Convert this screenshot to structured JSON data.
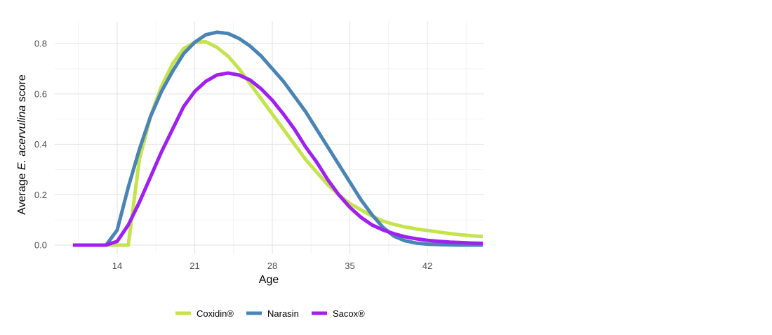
{
  "chart_data": {
    "type": "line",
    "title": "",
    "xlabel": "Age",
    "ylabel_prefix": "Average ",
    "ylabel_italic": "E. acervulina",
    "ylabel_suffix": " score",
    "xlim": [
      8.5,
      48
    ],
    "ylim": [
      -0.035,
      0.86
    ],
    "xticks": [
      14,
      21,
      28,
      35,
      42
    ],
    "yticks": [
      0.0,
      0.2,
      0.4,
      0.6,
      0.8
    ],
    "ytick_labels": [
      "0.0",
      "0.2",
      "0.4",
      "0.6",
      "0.8"
    ],
    "grid": true,
    "legend_position": "bottom",
    "x": [
      10,
      11,
      12,
      13,
      14,
      15,
      16,
      17,
      18,
      19,
      20,
      21,
      22,
      23,
      24,
      25,
      26,
      27,
      28,
      29,
      30,
      31,
      32,
      33,
      34,
      35,
      36,
      37,
      38,
      39,
      40,
      41,
      42,
      43,
      44,
      45,
      46,
      47
    ],
    "series": [
      {
        "name": "Coxidin®",
        "color": "#c5e34e",
        "values": [
          0,
          0,
          0,
          0,
          0,
          0,
          0.34,
          0.51,
          0.63,
          0.72,
          0.78,
          0.805,
          0.807,
          0.785,
          0.75,
          0.7,
          0.64,
          0.58,
          0.52,
          0.46,
          0.4,
          0.34,
          0.29,
          0.24,
          0.2,
          0.165,
          0.14,
          0.115,
          0.095,
          0.082,
          0.072,
          0.064,
          0.058,
          0.052,
          0.046,
          0.041,
          0.037,
          0.034
        ]
      },
      {
        "name": "Narasin",
        "color": "#4a84b4",
        "values": [
          0,
          0,
          0,
          0,
          0.06,
          0.23,
          0.38,
          0.51,
          0.61,
          0.69,
          0.76,
          0.805,
          0.835,
          0.845,
          0.84,
          0.82,
          0.79,
          0.75,
          0.7,
          0.65,
          0.59,
          0.53,
          0.46,
          0.39,
          0.32,
          0.25,
          0.18,
          0.12,
          0.07,
          0.035,
          0.017,
          0.008,
          0.004,
          0.002,
          0.001,
          0,
          0,
          0
        ]
      },
      {
        "name": "Sacox®",
        "color": "#a020f0",
        "values": [
          0,
          0,
          0,
          0,
          0.015,
          0.08,
          0.17,
          0.27,
          0.37,
          0.46,
          0.55,
          0.61,
          0.65,
          0.675,
          0.683,
          0.675,
          0.655,
          0.62,
          0.575,
          0.52,
          0.46,
          0.39,
          0.33,
          0.26,
          0.2,
          0.15,
          0.11,
          0.08,
          0.06,
          0.045,
          0.033,
          0.025,
          0.019,
          0.015,
          0.012,
          0.01,
          0.008,
          0.007
        ]
      }
    ]
  }
}
